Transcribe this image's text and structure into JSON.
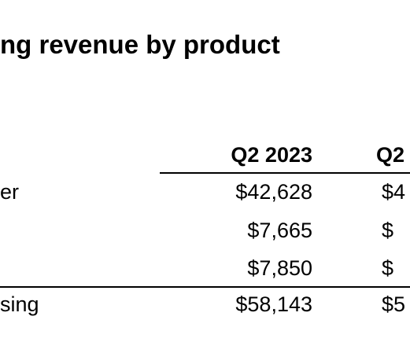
{
  "title": "ng revenue by product",
  "columns": [
    "Q2 2023",
    "Q2"
  ],
  "rows": [
    {
      "label": "er",
      "v1": "$42,628",
      "v2": "$4"
    },
    {
      "label": "",
      "v1": "$7,665",
      "v2": "$"
    },
    {
      "label": "",
      "v1": "$7,850",
      "v2": "$"
    },
    {
      "label": "sing",
      "v1": "$58,143",
      "v2": "$5"
    }
  ]
}
